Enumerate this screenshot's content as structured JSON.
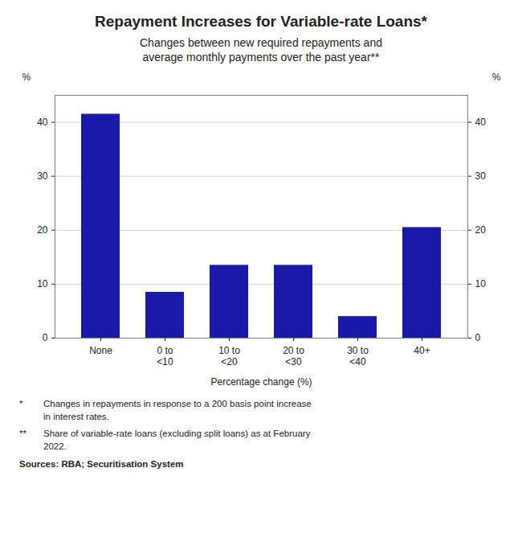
{
  "chart_data": {
    "type": "bar",
    "title": "Repayment Increases for Variable-rate Loans*",
    "subtitle": "Changes between new required repayments and\naverage monthly payments over the past year**",
    "categories": [
      "None",
      "0 to\n<10",
      "10 to\n<20",
      "20 to\n<30",
      "30 to\n<40",
      "40+"
    ],
    "values": [
      41.5,
      8.5,
      13.5,
      13.5,
      4.0,
      20.5
    ],
    "color": "#1a1aaa",
    "xlabel": "Percentage change (%)",
    "ylabel": "%",
    "y2label": "%",
    "ylim": [
      0,
      45
    ],
    "yticks": [
      0,
      10,
      20,
      30,
      40
    ],
    "y2lim": [
      0,
      45
    ],
    "y2ticks": [
      0,
      10,
      20,
      30,
      40
    ],
    "grid": true,
    "annotations": [
      {
        "label": "*",
        "text": "Changes in repayments in response to a 200 basis point increase\nin interest rates."
      },
      {
        "label": "**",
        "text": "Share of variable-rate loans (excluding split loans) as at February\n2022."
      }
    ],
    "source": "Sources: RBA; Securitisation System"
  }
}
